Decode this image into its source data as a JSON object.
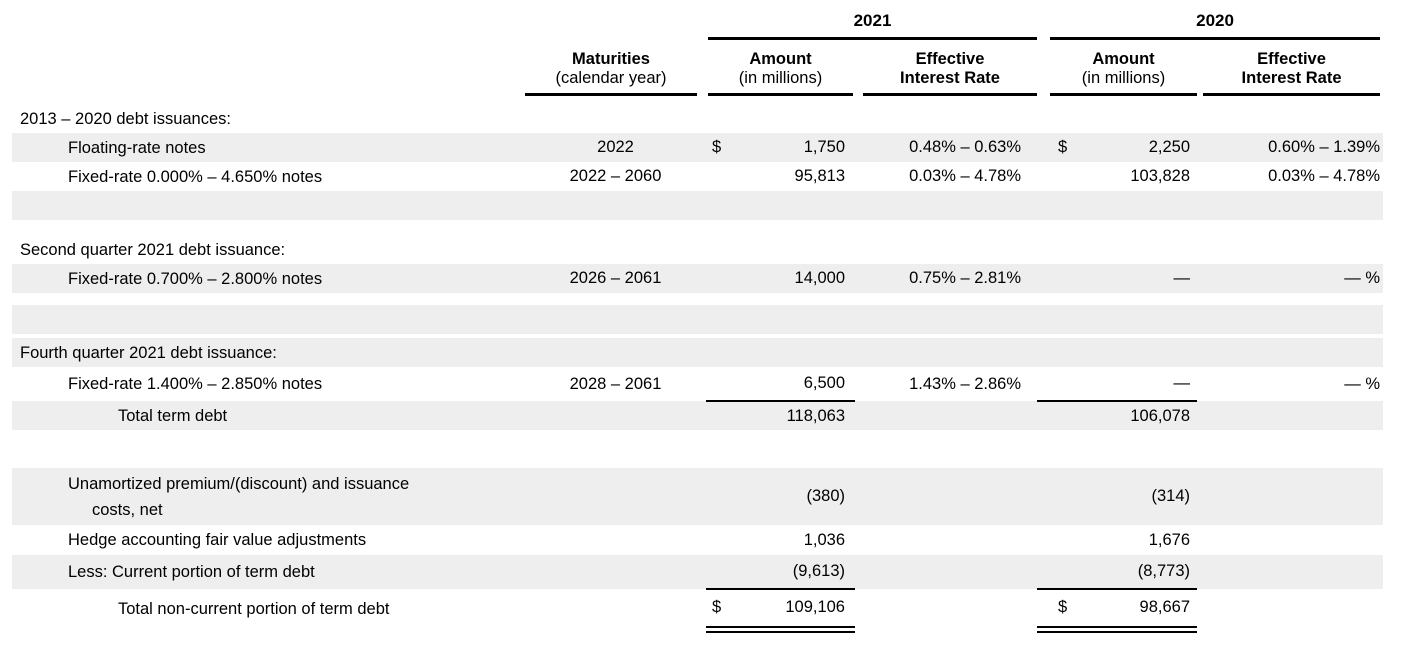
{
  "style": {
    "stripe_color": "#eeeeee",
    "text_color": "#000000",
    "rule_color": "#000000"
  },
  "table": {
    "groups": [
      {
        "year": "2021"
      },
      {
        "year": "2020"
      }
    ],
    "column_headers": {
      "maturities_line1": "Maturities",
      "maturities_line2": "(calendar year)",
      "amount_line1": "Amount",
      "amount_line2": "(in millions)",
      "rate_line1": "Effective",
      "rate_line2": "Interest Rate"
    },
    "rows": [
      {
        "type": "section",
        "bg": "white",
        "label": "2013 – 2020 debt issuances:"
      },
      {
        "type": "data",
        "bg": "gray",
        "indent": 1,
        "label": "Floating-rate notes",
        "maturities": "2022",
        "d21": "$",
        "a21": "1,750",
        "r21": "0.48% – 0.63%",
        "d20": "$",
        "a20": "2,250",
        "r20": "0.60% – 1.39%"
      },
      {
        "type": "data",
        "bg": "white",
        "indent": 1,
        "label": "Fixed-rate 0.000% – 4.650% notes",
        "maturities": "2022 – 2060",
        "a21": "95,813",
        "r21": "0.03% – 4.78%",
        "a20": "103,828",
        "r20": "0.03% – 4.78%"
      },
      {
        "type": "spacer",
        "bg": "gray",
        "h": 29
      },
      {
        "type": "spacer",
        "bg": "white",
        "h": 15
      },
      {
        "type": "section",
        "bg": "white",
        "label": "Second quarter 2021 debt issuance:"
      },
      {
        "type": "data",
        "bg": "gray",
        "indent": 1,
        "label": "Fixed-rate 0.700% – 2.800% notes",
        "maturities": "2026 – 2061",
        "a21": "14,000",
        "r21": "0.75% – 2.81%",
        "a20": "—",
        "r20": "— %"
      },
      {
        "type": "spacer",
        "bg": "white",
        "h": 12
      },
      {
        "type": "spacer",
        "bg": "gray",
        "h": 29
      },
      {
        "type": "spacer",
        "bg": "white",
        "h": 4
      },
      {
        "type": "section",
        "bg": "gray",
        "label": "Fourth quarter 2021 debt issuance:"
      },
      {
        "type": "data",
        "bg": "white",
        "indent": 1,
        "h": 34,
        "rule": "single",
        "label": "Fixed-rate 1.400% – 2.850% notes",
        "maturities": "2028 – 2061",
        "a21": "6,500",
        "r21": "1.43% – 2.86%",
        "a20": "—",
        "r20": "— %"
      },
      {
        "type": "data",
        "bg": "gray",
        "indent": 2,
        "label": "Total term debt",
        "a21": "118,063",
        "a20": "106,078"
      },
      {
        "type": "spacer",
        "bg": "white",
        "h": 38
      },
      {
        "type": "data",
        "bg": "gray",
        "indent": 1,
        "h": 57,
        "label": "Unamortized premium/(discount) and issuance",
        "label2": "costs, net",
        "a21": "(380)",
        "a20": "(314)"
      },
      {
        "type": "data",
        "bg": "white",
        "indent": 1,
        "h": 30,
        "label": "Hedge accounting fair value adjustments",
        "a21": "1,036",
        "a20": "1,676"
      },
      {
        "type": "data",
        "bg": "gray",
        "indent": 1,
        "h": 34,
        "rule": "single",
        "label": "Less: Current portion of term debt",
        "a21": "(9,613)",
        "a20": "(8,773)"
      },
      {
        "type": "data",
        "bg": "white",
        "indent": 2,
        "h": 40,
        "rule": "double",
        "label": "Total non-current portion of term debt",
        "d21": "$",
        "a21": "109,106",
        "d20": "$",
        "a20": "98,667"
      }
    ]
  }
}
